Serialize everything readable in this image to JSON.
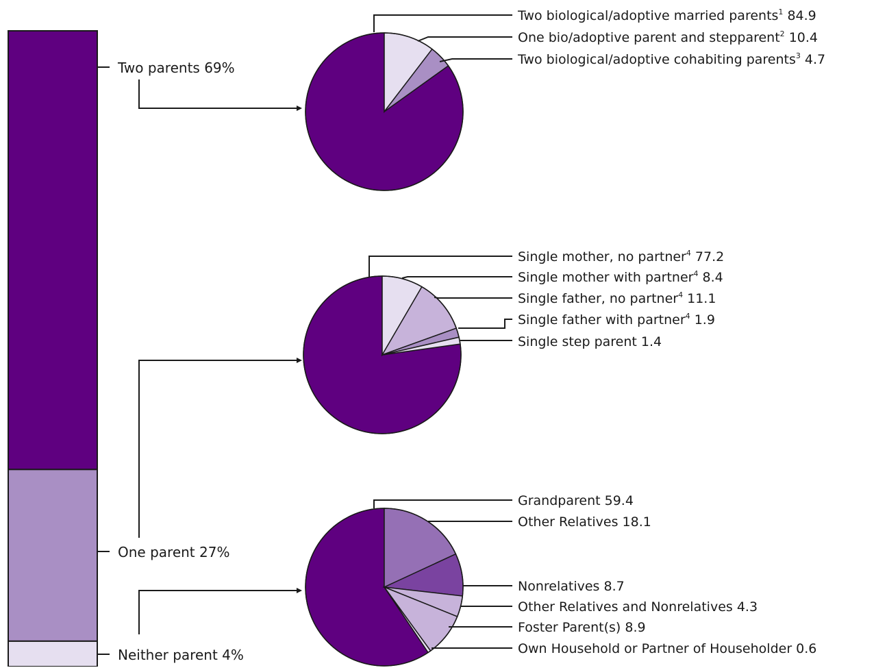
{
  "colors": {
    "dark": "#5f0080",
    "mid": "#a98fc4",
    "light": "#e6dff0",
    "slice_light": "#e6dff0",
    "slice_lav": "#c7b3da",
    "slice_mid": "#a98fc4",
    "slice_med": "#9570b5",
    "slice_deep": "#7a43a0",
    "line": "#1a1a1a"
  },
  "chart_data": [
    {
      "type": "bar",
      "stacked": true,
      "categories": [
        "Two parents",
        "One parent",
        "Neither parent"
      ],
      "values": [
        69,
        27,
        4
      ],
      "labels": [
        "Two parents  69%",
        "One parent  27%",
        "Neither parent  4%"
      ]
    },
    {
      "type": "pie",
      "group": "Two parents",
      "slices": [
        {
          "label": "Two biological/adoptive married parents",
          "note": "1",
          "value": 84.9
        },
        {
          "label": "One bio/adoptive parent and stepparent",
          "note": "2",
          "value": 10.4
        },
        {
          "label": "Two biological/adoptive cohabiting parents",
          "note": "3",
          "value": 4.7
        }
      ]
    },
    {
      "type": "pie",
      "group": "One parent",
      "slices": [
        {
          "label": "Single mother, no partner",
          "note": "4",
          "value": 77.2
        },
        {
          "label": "Single mother with partner",
          "note": "4",
          "value": 8.4
        },
        {
          "label": "Single father, no partner",
          "note": "4",
          "value": 11.1
        },
        {
          "label": "Single father with partner",
          "note": "4",
          "value": 1.9
        },
        {
          "label": "Single step parent",
          "note": "",
          "value": 1.4
        }
      ]
    },
    {
      "type": "pie",
      "group": "Neither parent",
      "slices": [
        {
          "label": "Grandparent",
          "note": "",
          "value": 59.4
        },
        {
          "label": "Other Relatives",
          "note": "",
          "value": 18.1
        },
        {
          "label": "Nonrelatives",
          "note": "",
          "value": 8.7
        },
        {
          "label": "Other Relatives and Nonrelatives",
          "note": "",
          "value": 4.3
        },
        {
          "label": "Foster Parent(s)",
          "note": "",
          "value": 8.9
        },
        {
          "label": "Own Household or Partner of Householder",
          "note": "",
          "value": 0.6
        }
      ]
    }
  ]
}
